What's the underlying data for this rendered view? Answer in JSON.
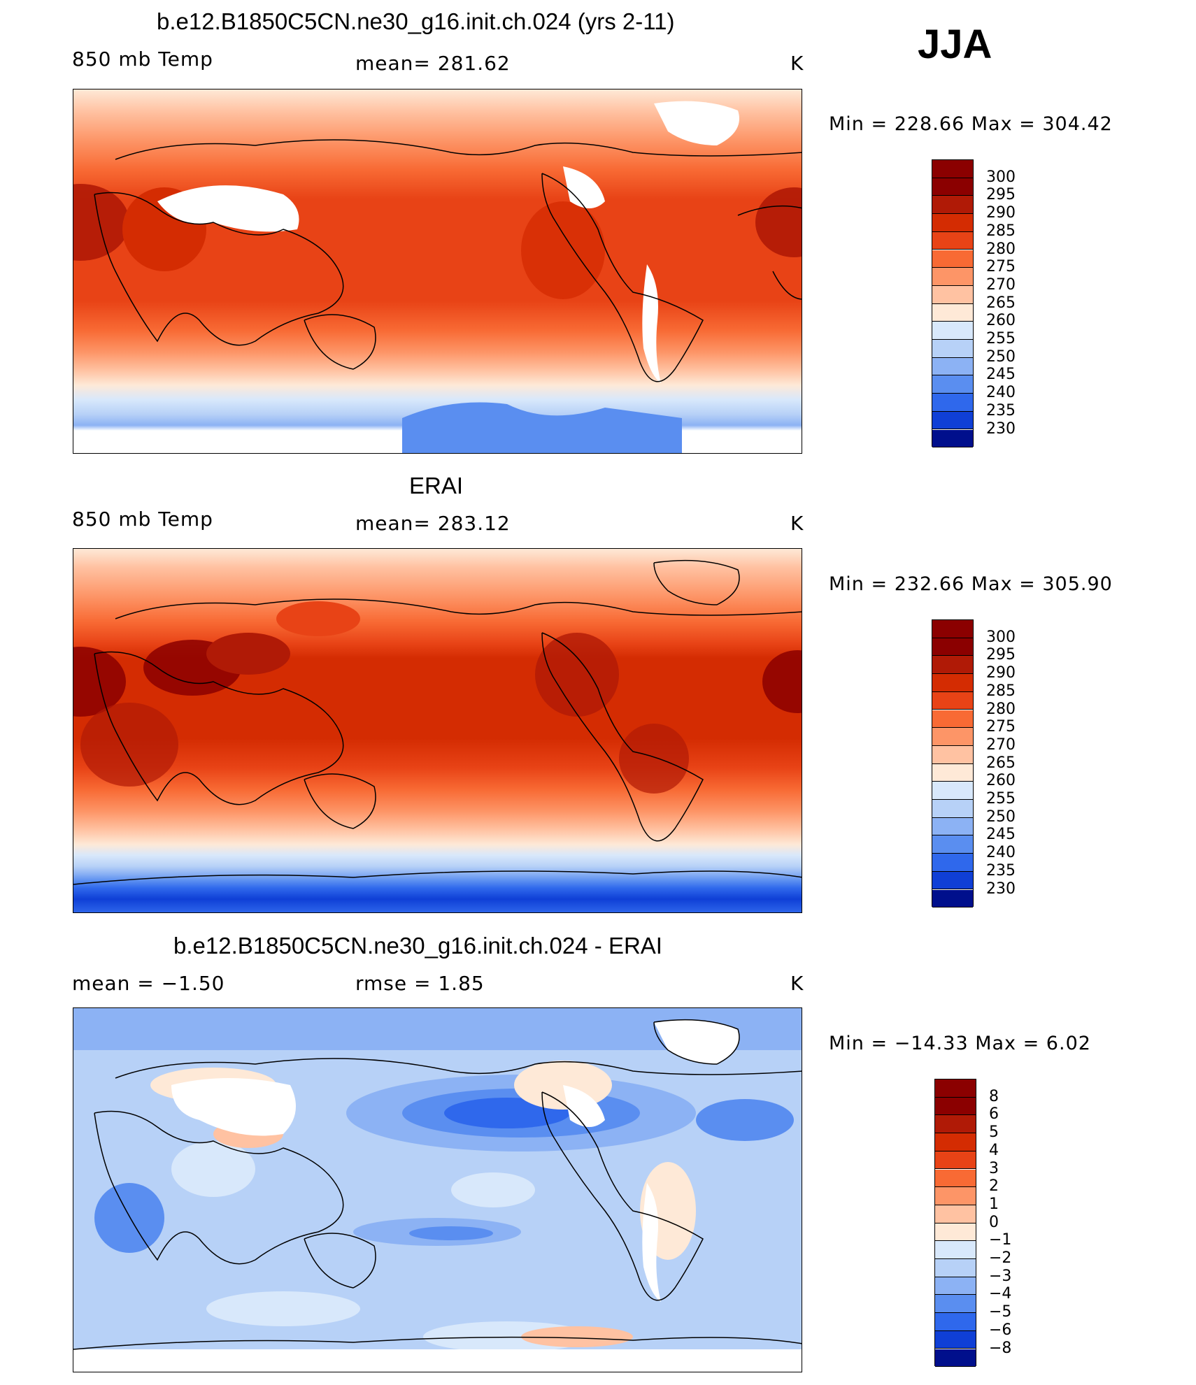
{
  "season": "JJA",
  "panels": [
    {
      "title": "b.e12.B1850C5CN.ne30_g16.init.ch.024 (yrs 2-11)",
      "left_label": "850 mb Temp",
      "mid_label": "mean=  281.62",
      "unit": "K",
      "minmax": "Min  =  228.66  Max  =  304.42",
      "colorbar": [
        "300",
        "295",
        "290",
        "285",
        "280",
        "275",
        "270",
        "265",
        "260",
        "255",
        "250",
        "245",
        "240",
        "235",
        "230"
      ]
    },
    {
      "title": "ERAI",
      "left_label": "850 mb Temp",
      "mid_label": "mean=  283.12",
      "unit": "K",
      "minmax": "Min  =  232.66  Max  =  305.90",
      "colorbar": [
        "300",
        "295",
        "290",
        "285",
        "280",
        "275",
        "270",
        "265",
        "260",
        "255",
        "250",
        "245",
        "240",
        "235",
        "230"
      ]
    },
    {
      "title": "b.e12.B1850C5CN.ne30_g16.init.ch.024 - ERAI",
      "left_label": "mean  =    −1.50",
      "mid_label": "rmse  =     1.85",
      "unit": "K",
      "minmax": "Min  =  −14.33  Max  =     6.02",
      "colorbar": [
        "8",
        "6",
        "5",
        "4",
        "3",
        "2",
        "1",
        "0",
        "−1",
        "−2",
        "−3",
        "−4",
        "−5",
        "−6",
        "−8"
      ]
    }
  ],
  "palettes": {
    "temperature": [
      "#8b0000",
      "#b01a06",
      "#d42c02",
      "#e84316",
      "#f86a34",
      "#fd9567",
      "#ffc2a2",
      "#fee9d7",
      "#d8e8fb",
      "#b7d1f7",
      "#8cb2f4",
      "#5a8ef0",
      "#2f68ec",
      "#0f3fd6",
      "#000f8c"
    ],
    "difference": [
      "#8b0000",
      "#b01a06",
      "#d42c02",
      "#e84316",
      "#f86a34",
      "#fd9567",
      "#ffc2a2",
      "#fee9d7",
      "#d8e8fb",
      "#b7d1f7",
      "#8cb2f4",
      "#5a8ef0",
      "#2f68ec",
      "#0f3fd6",
      "#000f8c"
    ]
  }
}
